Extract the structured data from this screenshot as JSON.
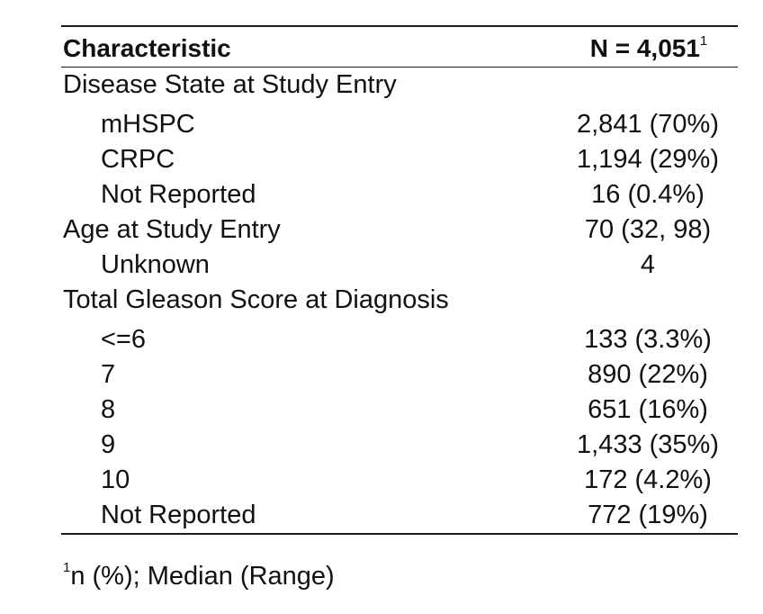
{
  "table": {
    "header": {
      "characteristic": "Characteristic",
      "n_label": "N = 4,051",
      "n_sup": "1"
    },
    "rows": [
      {
        "label": "Disease State at Study Entry",
        "value": "",
        "type": "group"
      },
      {
        "label": "mHSPC",
        "value": "2,841 (70%)",
        "type": "item"
      },
      {
        "label": "CRPC",
        "value": "1,194 (29%)",
        "type": "item"
      },
      {
        "label": "Not Reported",
        "value": "16 (0.4%)",
        "type": "item"
      },
      {
        "label": "Age at Study Entry",
        "value": "70 (32, 98)",
        "type": "group-value"
      },
      {
        "label": "Unknown",
        "value": "4",
        "type": "item"
      },
      {
        "label": "Total Gleason Score at Diagnosis",
        "value": "",
        "type": "group"
      },
      {
        "label": "<=6",
        "value": "133 (3.3%)",
        "type": "item"
      },
      {
        "label": "7",
        "value": "890 (22%)",
        "type": "item"
      },
      {
        "label": "8",
        "value": "651 (16%)",
        "type": "item"
      },
      {
        "label": "9",
        "value": "1,433 (35%)",
        "type": "item"
      },
      {
        "label": "10",
        "value": "172 (4.2%)",
        "type": "item"
      },
      {
        "label": "Not Reported",
        "value": "772 (19%)",
        "type": "item"
      }
    ],
    "footnote": {
      "sup": "1",
      "text": "n (%); Median (Range)"
    }
  }
}
